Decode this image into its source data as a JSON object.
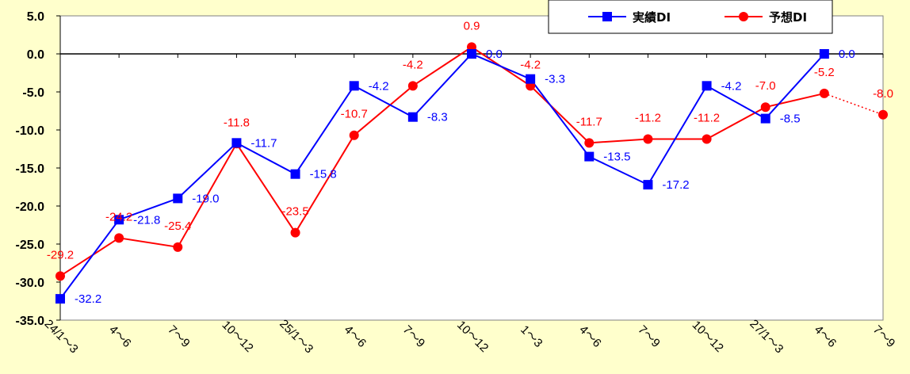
{
  "chart_data": {
    "type": "line",
    "categories": [
      "24/1～3",
      "4～6",
      "7～9",
      "10～12",
      "25/1～3",
      "4～6",
      "7～9",
      "10～12",
      "1～3",
      "4～6",
      "7～9",
      "10～12",
      "27/1～3",
      "4～6",
      "7～9"
    ],
    "series": [
      {
        "name": "実績DI",
        "color": "#0000ff",
        "marker": "square",
        "values": [
          -32.2,
          -21.8,
          -19.0,
          -11.7,
          -15.8,
          -4.2,
          -8.3,
          0.0,
          -3.3,
          -13.5,
          -17.2,
          -4.2,
          -8.5,
          0.0,
          null
        ],
        "labels": [
          "-32.2",
          "-21.8",
          "-19.0",
          "-11.7",
          "-15.8",
          "-4.2",
          "-8.3",
          "0.0",
          "-3.3",
          "-13.5",
          "-17.2",
          "-4.2",
          "-8.5",
          "0.0",
          ""
        ]
      },
      {
        "name": "予想DI",
        "color": "#ff0000",
        "marker": "circle",
        "values": [
          -29.2,
          -24.2,
          -25.4,
          -11.8,
          -23.5,
          -10.7,
          -4.2,
          0.9,
          -4.2,
          -11.7,
          -11.2,
          -11.2,
          -7.0,
          -5.2,
          -8.0
        ],
        "labels": [
          "-29.2",
          "-24.2",
          "-25.4",
          "-11.8",
          "-23.5",
          "-10.7",
          "-4.2",
          "0.9",
          "-4.2",
          "-11.7",
          "-11.2",
          "-11.2",
          "-7.0",
          "-5.2",
          "-8.0"
        ],
        "dotted_from_index": 13
      }
    ],
    "ylim": [
      -35,
      5
    ],
    "yticks": [
      "5.0",
      "0.0",
      "-5.0",
      "-10.0",
      "-15.0",
      "-20.0",
      "-25.0",
      "-30.0",
      "-35.0"
    ],
    "ytick_values": [
      5,
      0,
      -5,
      -10,
      -15,
      -20,
      -25,
      -30,
      -35
    ],
    "grid": false,
    "legend_position": "top-right"
  }
}
